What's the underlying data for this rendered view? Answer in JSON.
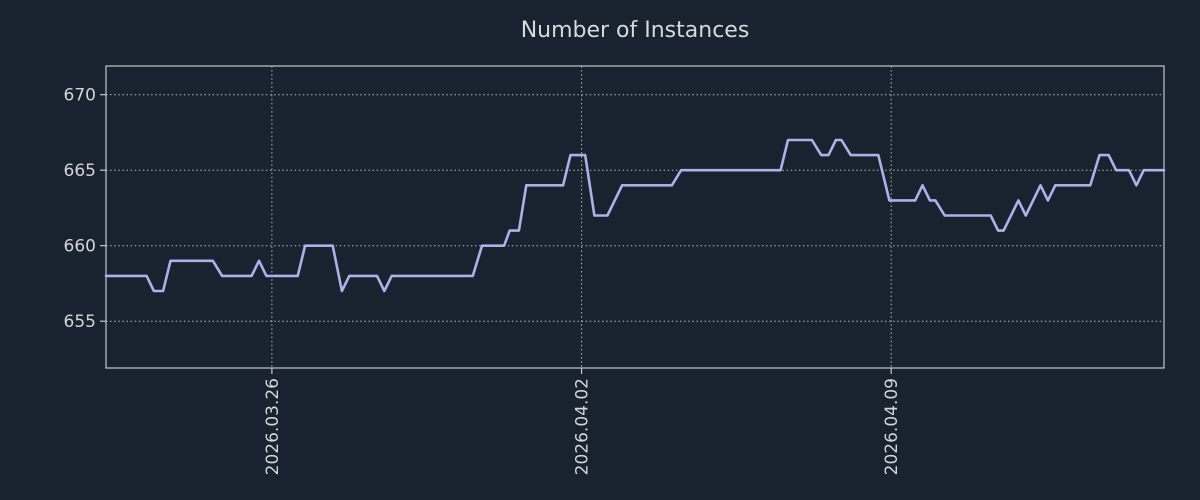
{
  "chart_data": {
    "type": "line",
    "title": "Number of Instances",
    "xlabel": "",
    "ylabel": "",
    "grid": "dotted",
    "legend": "none",
    "background_color": "#19222f",
    "line_color": "#a9b2e9",
    "text_color": "#d2d5d9",
    "spine_color": "#c3c7cc",
    "grid_color": "#cdd0d5",
    "ylim": [
      651.9,
      671.9
    ],
    "xlim": [
      "2026-03-22T06:00",
      "2026-04-15T04:00"
    ],
    "y_ticks": [
      {
        "value": 670,
        "label": "670"
      },
      {
        "value": 665,
        "label": "665"
      },
      {
        "value": 660,
        "label": "660"
      },
      {
        "value": 655,
        "label": "655"
      }
    ],
    "x_ticks": [
      {
        "date": "2026-03-26T00:00",
        "label": "2026.03.26"
      },
      {
        "date": "2026-04-02T00:00",
        "label": "2026.04.02"
      },
      {
        "date": "2026-04-09T00:00",
        "label": "2026.04.09"
      }
    ],
    "series": [
      {
        "name": "instances",
        "color": "#a9b2e9",
        "points": [
          [
            "2026-03-22T06:00",
            658
          ],
          [
            "2026-03-23T04:00",
            658
          ],
          [
            "2026-03-23T08:00",
            657
          ],
          [
            "2026-03-23T13:00",
            657
          ],
          [
            "2026-03-23T17:00",
            659
          ],
          [
            "2026-03-24T16:00",
            659
          ],
          [
            "2026-03-24T21:00",
            658
          ],
          [
            "2026-03-25T13:00",
            658
          ],
          [
            "2026-03-25T17:00",
            659
          ],
          [
            "2026-03-25T21:00",
            658
          ],
          [
            "2026-03-26T14:00",
            658
          ],
          [
            "2026-03-26T18:00",
            660
          ],
          [
            "2026-03-27T09:00",
            660
          ],
          [
            "2026-03-27T14:00",
            657
          ],
          [
            "2026-03-27T18:00",
            658
          ],
          [
            "2026-03-28T09:00",
            658
          ],
          [
            "2026-03-28T13:00",
            657
          ],
          [
            "2026-03-28T17:00",
            658
          ],
          [
            "2026-03-30T13:00",
            658
          ],
          [
            "2026-03-30T18:00",
            660
          ],
          [
            "2026-03-31T06:00",
            660
          ],
          [
            "2026-03-31T09:00",
            661
          ],
          [
            "2026-03-31T14:00",
            661
          ],
          [
            "2026-03-31T18:00",
            664
          ],
          [
            "2026-04-01T14:00",
            664
          ],
          [
            "2026-04-01T18:00",
            666
          ],
          [
            "2026-04-02T02:00",
            666
          ],
          [
            "2026-04-02T07:00",
            662
          ],
          [
            "2026-04-02T14:00",
            662
          ],
          [
            "2026-04-02T22:00",
            664
          ],
          [
            "2026-04-04T01:00",
            664
          ],
          [
            "2026-04-04T06:00",
            665
          ],
          [
            "2026-04-06T12:00",
            665
          ],
          [
            "2026-04-06T16:00",
            667
          ],
          [
            "2026-04-07T05:00",
            667
          ],
          [
            "2026-04-07T10:00",
            666
          ],
          [
            "2026-04-07T14:00",
            666
          ],
          [
            "2026-04-07T18:00",
            667
          ],
          [
            "2026-04-07T21:00",
            667
          ],
          [
            "2026-04-08T02:00",
            666
          ],
          [
            "2026-04-08T17:00",
            666
          ],
          [
            "2026-04-08T23:00",
            663
          ],
          [
            "2026-04-09T13:00",
            663
          ],
          [
            "2026-04-09T17:00",
            664
          ],
          [
            "2026-04-09T21:00",
            663
          ],
          [
            "2026-04-10T00:00",
            663
          ],
          [
            "2026-04-10T05:00",
            662
          ],
          [
            "2026-04-11T06:00",
            662
          ],
          [
            "2026-04-11T10:00",
            661
          ],
          [
            "2026-04-11T13:00",
            661
          ],
          [
            "2026-04-11T21:00",
            663
          ],
          [
            "2026-04-12T01:00",
            662
          ],
          [
            "2026-04-12T09:00",
            664
          ],
          [
            "2026-04-12T13:00",
            663
          ],
          [
            "2026-04-12T17:00",
            664
          ],
          [
            "2026-04-13T12:00",
            664
          ],
          [
            "2026-04-13T17:00",
            666
          ],
          [
            "2026-04-13T22:00",
            666
          ],
          [
            "2026-04-14T02:00",
            665
          ],
          [
            "2026-04-14T09:00",
            665
          ],
          [
            "2026-04-14T13:00",
            664
          ],
          [
            "2026-04-14T17:00",
            665
          ],
          [
            "2026-04-15T04:00",
            665
          ]
        ]
      }
    ]
  }
}
